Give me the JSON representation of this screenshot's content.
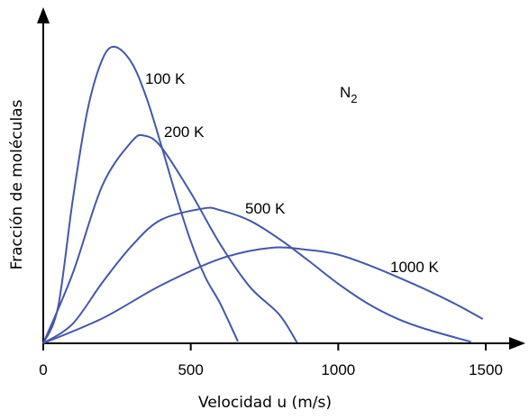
{
  "chart_data": {
    "type": "line",
    "title": "",
    "annotation": {
      "text": "N",
      "subscript": "2"
    },
    "xlabel": "Velocidad u (m/s)",
    "ylabel": "Fracción de moléculas",
    "xlim": [
      0,
      1500
    ],
    "ylim": [
      0,
      1
    ],
    "y_ticks_shown": false,
    "grid": false,
    "legend": "none",
    "x_ticks": [
      "0",
      "500",
      "1000",
      "1500"
    ],
    "x_tick_values": [
      0,
      500,
      1000,
      1500
    ],
    "curve_color": "#4357ad",
    "series": [
      {
        "name": "100 K",
        "x": [
          0,
          50,
          100,
          150,
          200,
          243,
          300,
          350,
          400,
          450,
          500,
          550,
          600,
          660
        ],
        "y": [
          0,
          0.122,
          0.483,
          0.786,
          0.957,
          1.0,
          0.946,
          0.828,
          0.668,
          0.499,
          0.344,
          0.222,
          0.134,
          0.006
        ]
      },
      {
        "name": "200 K",
        "x": [
          0,
          100,
          200,
          300,
          344,
          400,
          500,
          600,
          700,
          800,
          860
        ],
        "y": [
          0,
          0.236,
          0.532,
          0.681,
          0.7,
          0.662,
          0.508,
          0.334,
          0.191,
          0.097,
          0.003
        ]
      },
      {
        "name": "500 K",
        "x": [
          0,
          100,
          200,
          300,
          400,
          544,
          600,
          700,
          800,
          900,
          1000,
          1100,
          1200,
          1300,
          1450
        ],
        "y": [
          0,
          0.066,
          0.205,
          0.329,
          0.417,
          0.455,
          0.449,
          0.414,
          0.352,
          0.278,
          0.201,
          0.134,
          0.083,
          0.047,
          0.005
        ]
      },
      {
        "name": "1000 K",
        "x": [
          0,
          200,
          400,
          600,
          770,
          900,
          1000,
          1100,
          1200,
          1300,
          1400,
          1490
        ],
        "y": [
          0,
          0.084,
          0.196,
          0.285,
          0.322,
          0.315,
          0.299,
          0.265,
          0.224,
          0.18,
          0.131,
          0.082
        ]
      }
    ]
  }
}
